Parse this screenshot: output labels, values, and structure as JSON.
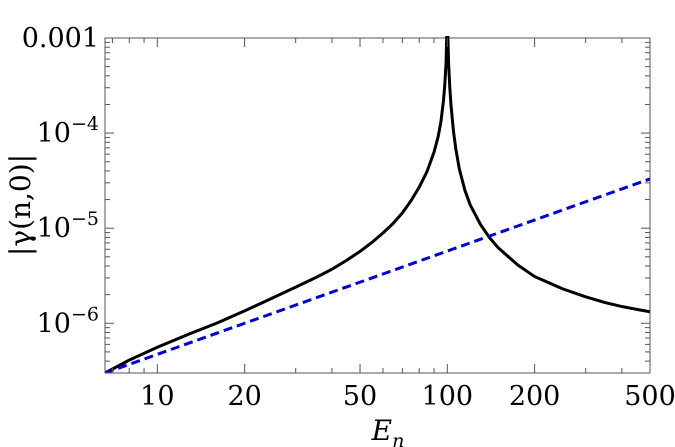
{
  "chart_data": {
    "type": "line",
    "title": "",
    "xlabel": "E_n",
    "ylabel": "|γ(n,0)|",
    "x_scale": "log",
    "y_scale": "log",
    "xlim": [
      6.6,
      500
    ],
    "ylim": [
      3e-07,
      0.001
    ],
    "grid": false,
    "x_ticks": [
      {
        "value": 10,
        "label": "10"
      },
      {
        "value": 20,
        "label": "20"
      },
      {
        "value": 50,
        "label": "50"
      },
      {
        "value": 100,
        "label": "100"
      },
      {
        "value": 200,
        "label": "200"
      },
      {
        "value": 500,
        "label": "500"
      }
    ],
    "y_ticks": [
      {
        "value": 1e-06,
        "base": "10",
        "exp": "−6"
      },
      {
        "value": 1e-05,
        "base": "10",
        "exp": "−5"
      },
      {
        "value": 0.0001,
        "base": "10",
        "exp": "−4"
      },
      {
        "value": 0.001,
        "label": "0.001"
      }
    ],
    "series": [
      {
        "color": "#000000",
        "style": "solid",
        "x": [
          6.6,
          8,
          10,
          13,
          16,
          20,
          25,
          30,
          35,
          40,
          45,
          50,
          55,
          60,
          65,
          70,
          75,
          80,
          85,
          90,
          93,
          95,
          97,
          98,
          99,
          99.5,
          100,
          100.5,
          101,
          102,
          103,
          105,
          107,
          110,
          115,
          120,
          130,
          140,
          150,
          175,
          200,
          250,
          300,
          350,
          400,
          450,
          500
        ],
        "y": [
          3e-07,
          4.1e-07,
          5.6e-07,
          7.8e-07,
          1e-06,
          1.35e-06,
          1.85e-06,
          2.4e-06,
          3e-06,
          3.7e-06,
          4.6e-06,
          5.7e-06,
          7.1e-06,
          8.9e-06,
          1.12e-05,
          1.45e-05,
          1.95e-05,
          2.7e-05,
          3.9e-05,
          6.3e-05,
          9.2e-05,
          0.00013,
          0.00022,
          0.00032,
          0.00055,
          0.001,
          0.0013,
          0.001,
          0.00055,
          0.0003,
          0.000195,
          0.000105,
          6.8e-05,
          4.2e-05,
          2.5e-05,
          1.75e-05,
          1.1e-05,
          7.9e-06,
          6.2e-06,
          4.1e-06,
          3.1e-06,
          2.3e-06,
          1.9e-06,
          1.65e-06,
          1.5e-06,
          1.4e-06,
          1.32e-06
        ]
      },
      {
        "color": "#0000dd",
        "style": "dashed",
        "x": [
          6.6,
          500
        ],
        "y": [
          3e-07,
          3.3e-05
        ]
      }
    ]
  }
}
